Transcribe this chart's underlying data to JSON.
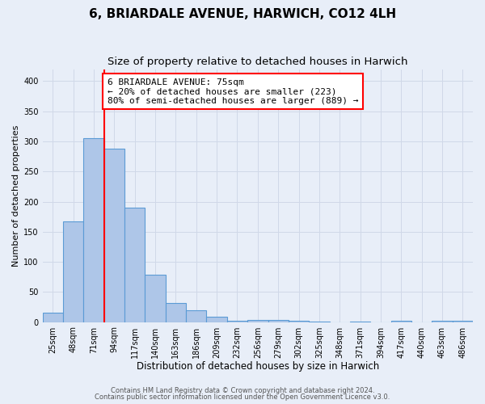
{
  "title": "6, BRIARDALE AVENUE, HARWICH, CO12 4LH",
  "subtitle": "Size of property relative to detached houses in Harwich",
  "xlabel": "Distribution of detached houses by size in Harwich",
  "ylabel": "Number of detached properties",
  "categories": [
    "25sqm",
    "48sqm",
    "71sqm",
    "94sqm",
    "117sqm",
    "140sqm",
    "163sqm",
    "186sqm",
    "209sqm",
    "232sqm",
    "256sqm",
    "279sqm",
    "302sqm",
    "325sqm",
    "348sqm",
    "371sqm",
    "394sqm",
    "417sqm",
    "440sqm",
    "463sqm",
    "486sqm"
  ],
  "values": [
    15,
    167,
    305,
    288,
    190,
    78,
    32,
    19,
    9,
    2,
    3,
    3,
    2,
    1,
    0,
    1,
    0,
    2,
    0,
    2,
    2
  ],
  "bar_color": "#aec6e8",
  "bar_edge_color": "#5b9bd5",
  "vline_x_index": 2,
  "vline_color": "red",
  "vline_linewidth": 1.5,
  "annotation_box_text": "6 BRIARDALE AVENUE: 75sqm\n← 20% of detached houses are smaller (223)\n80% of semi-detached houses are larger (889) →",
  "annotation_box_color": "white",
  "annotation_box_edge_color": "red",
  "ylim": [
    0,
    420
  ],
  "yticks": [
    0,
    50,
    100,
    150,
    200,
    250,
    300,
    350,
    400
  ],
  "grid_color": "#d0d8e8",
  "background_color": "#e8eef8",
  "plot_bg_color": "#e8eef8",
  "footer_line1": "Contains HM Land Registry data © Crown copyright and database right 2024.",
  "footer_line2": "Contains public sector information licensed under the Open Government Licence v3.0.",
  "title_fontsize": 11,
  "subtitle_fontsize": 9.5,
  "xlabel_fontsize": 8.5,
  "ylabel_fontsize": 8,
  "tick_fontsize": 7,
  "annotation_fontsize": 8,
  "footer_fontsize": 6
}
